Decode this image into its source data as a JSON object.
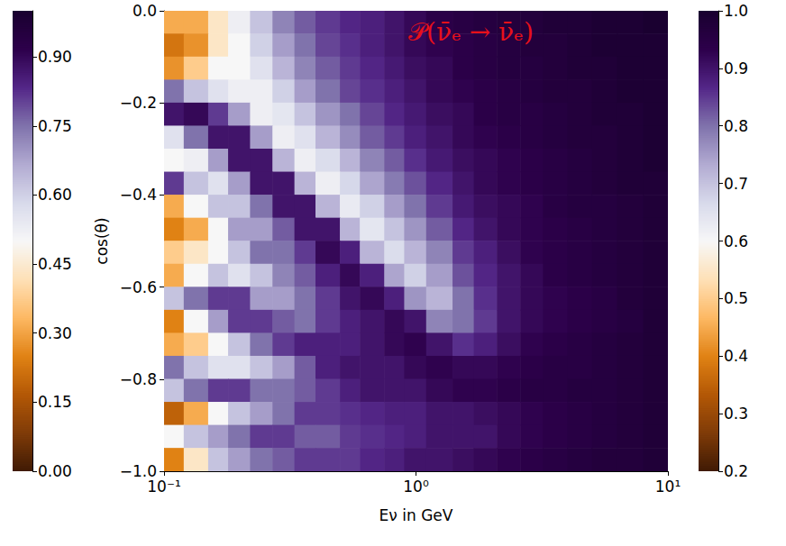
{
  "chart_data": {
    "type": "heatmap",
    "title": "𝒫(ν̄ₑ → ν̄ₑ)",
    "x_label": "Eν in GeV",
    "y_label": "cos(θ)",
    "log": "x",
    "grid": false,
    "xlim": [
      0.1,
      10
    ],
    "xticks": [
      {
        "value": 0.1,
        "label": "10⁻¹"
      },
      {
        "value": 1,
        "label": "10⁰"
      },
      {
        "value": 10,
        "label": "10¹"
      }
    ],
    "ylim": [
      -1,
      0
    ],
    "yticks": [
      {
        "value": -1,
        "label": "−1.0"
      },
      {
        "value": -0.8,
        "label": "−0.8"
      },
      {
        "value": -0.6,
        "label": "−0.6"
      },
      {
        "value": -0.4,
        "label": "−0.4"
      },
      {
        "value": -0.2,
        "label": "−0.2"
      },
      {
        "value": 0,
        "label": "0.0"
      }
    ],
    "x_edges": [
      0.1,
      0.12,
      0.15,
      0.18,
      0.22,
      0.27,
      0.33,
      0.4,
      0.5,
      0.6,
      0.75,
      0.9,
      1.1,
      1.4,
      1.7,
      2.1,
      2.6,
      3.2,
      4,
      5,
      6.3,
      8,
      10
    ],
    "y_edges": [
      0,
      -0.05,
      -0.1,
      -0.15,
      -0.2,
      -0.25,
      -0.3,
      -0.35,
      -0.4,
      -0.45,
      -0.5,
      -0.55,
      -0.6,
      -0.65,
      -0.7,
      -0.75,
      -0.8,
      -0.85,
      -0.9,
      -0.95,
      -1
    ],
    "z": [
      [
        0.45,
        0.45,
        0.55,
        0.62,
        0.7,
        0.78,
        0.82,
        0.85,
        0.87,
        0.88,
        0.9,
        0.92,
        0.94,
        0.95,
        0.96,
        0.97,
        0.97,
        0.98,
        0.98,
        0.99,
        0.99,
        1.0
      ],
      [
        0.38,
        0.42,
        0.55,
        0.6,
        0.68,
        0.75,
        0.8,
        0.84,
        0.86,
        0.88,
        0.9,
        0.92,
        0.93,
        0.94,
        0.95,
        0.96,
        0.97,
        0.97,
        0.98,
        0.99,
        0.99,
        0.99
      ],
      [
        0.42,
        0.5,
        0.6,
        0.6,
        0.65,
        0.72,
        0.78,
        0.82,
        0.85,
        0.87,
        0.89,
        0.91,
        0.92,
        0.94,
        0.95,
        0.96,
        0.96,
        0.97,
        0.98,
        0.98,
        0.99,
        0.99
      ],
      [
        0.8,
        0.7,
        0.65,
        0.62,
        0.62,
        0.68,
        0.75,
        0.8,
        0.84,
        0.86,
        0.88,
        0.9,
        0.92,
        0.93,
        0.94,
        0.95,
        0.96,
        0.97,
        0.97,
        0.98,
        0.99,
        0.99
      ],
      [
        0.9,
        0.92,
        0.85,
        0.75,
        0.62,
        0.64,
        0.7,
        0.76,
        0.8,
        0.84,
        0.87,
        0.89,
        0.91,
        0.92,
        0.94,
        0.95,
        0.95,
        0.96,
        0.97,
        0.98,
        0.98,
        0.99
      ],
      [
        0.65,
        0.8,
        0.9,
        0.9,
        0.75,
        0.62,
        0.65,
        0.72,
        0.77,
        0.82,
        0.85,
        0.88,
        0.9,
        0.92,
        0.93,
        0.94,
        0.95,
        0.96,
        0.97,
        0.97,
        0.98,
        0.99
      ],
      [
        0.6,
        0.62,
        0.75,
        0.9,
        0.9,
        0.72,
        0.62,
        0.66,
        0.72,
        0.78,
        0.82,
        0.86,
        0.89,
        0.91,
        0.92,
        0.93,
        0.94,
        0.95,
        0.96,
        0.97,
        0.98,
        0.99
      ],
      [
        0.85,
        0.7,
        0.65,
        0.75,
        0.9,
        0.9,
        0.72,
        0.62,
        0.67,
        0.74,
        0.79,
        0.83,
        0.87,
        0.9,
        0.92,
        0.93,
        0.94,
        0.95,
        0.96,
        0.97,
        0.98,
        0.98
      ],
      [
        0.45,
        0.6,
        0.7,
        0.7,
        0.8,
        0.9,
        0.9,
        0.72,
        0.63,
        0.68,
        0.75,
        0.8,
        0.85,
        0.89,
        0.91,
        0.92,
        0.93,
        0.95,
        0.96,
        0.96,
        0.97,
        0.98
      ],
      [
        0.4,
        0.45,
        0.6,
        0.75,
        0.75,
        0.82,
        0.9,
        0.9,
        0.72,
        0.64,
        0.7,
        0.76,
        0.82,
        0.87,
        0.9,
        0.92,
        0.93,
        0.94,
        0.95,
        0.96,
        0.97,
        0.98
      ],
      [
        0.5,
        0.55,
        0.6,
        0.7,
        0.8,
        0.8,
        0.85,
        0.92,
        0.88,
        0.72,
        0.66,
        0.72,
        0.78,
        0.85,
        0.88,
        0.91,
        0.93,
        0.94,
        0.95,
        0.96,
        0.97,
        0.98
      ],
      [
        0.45,
        0.6,
        0.7,
        0.65,
        0.7,
        0.78,
        0.82,
        0.88,
        0.92,
        0.88,
        0.74,
        0.68,
        0.75,
        0.83,
        0.87,
        0.9,
        0.92,
        0.94,
        0.95,
        0.96,
        0.97,
        0.98
      ],
      [
        0.7,
        0.8,
        0.85,
        0.85,
        0.75,
        0.75,
        0.8,
        0.85,
        0.9,
        0.92,
        0.88,
        0.76,
        0.72,
        0.8,
        0.86,
        0.9,
        0.92,
        0.93,
        0.94,
        0.95,
        0.97,
        0.98
      ],
      [
        0.4,
        0.6,
        0.75,
        0.85,
        0.85,
        0.82,
        0.8,
        0.85,
        0.88,
        0.9,
        0.92,
        0.9,
        0.78,
        0.8,
        0.85,
        0.9,
        0.92,
        0.93,
        0.94,
        0.95,
        0.96,
        0.98
      ],
      [
        0.45,
        0.5,
        0.6,
        0.7,
        0.8,
        0.85,
        0.88,
        0.88,
        0.88,
        0.9,
        0.92,
        0.93,
        0.9,
        0.86,
        0.88,
        0.91,
        0.93,
        0.94,
        0.95,
        0.96,
        0.97,
        0.98
      ],
      [
        0.8,
        0.7,
        0.65,
        0.65,
        0.7,
        0.75,
        0.82,
        0.88,
        0.9,
        0.9,
        0.9,
        0.92,
        0.93,
        0.92,
        0.92,
        0.93,
        0.94,
        0.95,
        0.95,
        0.96,
        0.97,
        0.98
      ],
      [
        0.7,
        0.8,
        0.85,
        0.85,
        0.8,
        0.8,
        0.82,
        0.85,
        0.88,
        0.9,
        0.9,
        0.9,
        0.92,
        0.93,
        0.93,
        0.94,
        0.95,
        0.95,
        0.96,
        0.96,
        0.97,
        0.98
      ],
      [
        0.35,
        0.45,
        0.6,
        0.7,
        0.75,
        0.8,
        0.85,
        0.85,
        0.86,
        0.87,
        0.88,
        0.88,
        0.9,
        0.9,
        0.91,
        0.92,
        0.93,
        0.94,
        0.95,
        0.96,
        0.97,
        0.98
      ],
      [
        0.6,
        0.7,
        0.75,
        0.8,
        0.85,
        0.85,
        0.82,
        0.82,
        0.85,
        0.86,
        0.87,
        0.88,
        0.9,
        0.9,
        0.9,
        0.92,
        0.93,
        0.94,
        0.95,
        0.96,
        0.97,
        0.98
      ],
      [
        0.4,
        0.55,
        0.7,
        0.75,
        0.8,
        0.82,
        0.85,
        0.85,
        0.85,
        0.87,
        0.88,
        0.9,
        0.9,
        0.91,
        0.92,
        0.93,
        0.94,
        0.95,
        0.96,
        0.97,
        0.97,
        0.98
      ]
    ],
    "colorbar_range": [
      0.2,
      1.0
    ],
    "colorbar_ticks": [
      0.2,
      0.3,
      0.4,
      0.5,
      0.6,
      0.7,
      0.8,
      0.9,
      {
        "value": 1,
        "label": "1.0"
      }
    ],
    "colorbar2_range": [
      0,
      1
    ],
    "colorbar2_ticks": [
      {
        "value": 0,
        "label": "0.00"
      },
      {
        "value": 0.15,
        "label": "0.15"
      },
      {
        "value": 0.3,
        "label": "0.30"
      },
      {
        "value": 0.45,
        "label": "0.45"
      },
      {
        "value": 0.6,
        "label": "0.60"
      },
      {
        "value": 0.75,
        "label": "0.75"
      },
      {
        "value": 0.9,
        "label": "0.90"
      }
    ]
  }
}
